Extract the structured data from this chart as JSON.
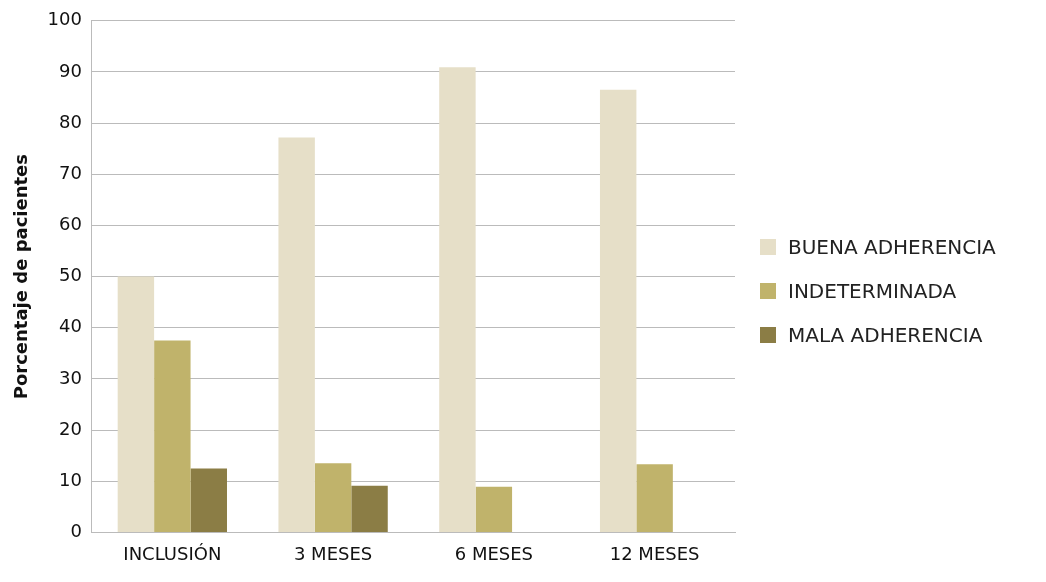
{
  "chart_data": {
    "type": "bar",
    "ylabel": "Porcentaje de pacientes",
    "categories": [
      "INCLUSIÓN",
      "3 MESES",
      "6 MESES",
      "12 MESES"
    ],
    "series": [
      {
        "name": "BUENA ADHERENCIA",
        "color": "#e6dfc8",
        "values": [
          50,
          77.2,
          90.9,
          86.5
        ]
      },
      {
        "name": "INDETERMINADA",
        "color": "#c0b36b",
        "values": [
          37.5,
          13.5,
          8.9,
          13.3
        ]
      },
      {
        "name": "MALA ADHERENCIA",
        "color": "#8b7d45",
        "values": [
          12.5,
          9.1,
          0,
          0
        ]
      }
    ],
    "ylim": [
      0,
      100
    ],
    "yticks": [
      0,
      10,
      20,
      30,
      40,
      50,
      60,
      70,
      80,
      90,
      100
    ],
    "grid": "y",
    "legend": "right"
  }
}
